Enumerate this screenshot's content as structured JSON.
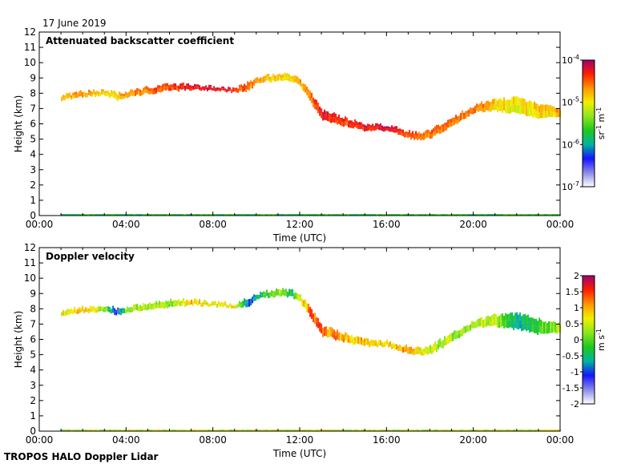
{
  "page": {
    "date": "17 June 2019",
    "footer": "TROPOS HALO Doppler Lidar"
  },
  "colors": {
    "background": "#ffffff",
    "axis": "#000000",
    "rainbow": [
      "#ffffff",
      "#8a8ae6",
      "#1414ff",
      "#00b4a0",
      "#1ec81e",
      "#8ce61e",
      "#f0f000",
      "#ff9600",
      "#ff1e00",
      "#a0006e"
    ]
  },
  "chart_data": [
    {
      "type": "heatmap",
      "title": "Attenuated backscatter coefficient",
      "xlabel": "Time (UTC)",
      "ylabel": "Height (km)",
      "xlim": [
        "00:00",
        "24:00"
      ],
      "x_ticks": [
        "00:00",
        "04:00",
        "08:00",
        "12:00",
        "16:00",
        "20:00",
        "00:00"
      ],
      "ylim": [
        0,
        12
      ],
      "y_ticks": [
        0,
        1,
        2,
        3,
        4,
        5,
        6,
        7,
        8,
        9,
        10,
        11,
        12
      ],
      "colorbar": {
        "label": "sr-1 m-1",
        "label_parts": [
          "sr",
          "-1",
          " m",
          "-1"
        ],
        "scale": "log",
        "range": [
          1e-07,
          0.0001
        ],
        "ticks": [
          {
            "value": 1e-07,
            "base": "10",
            "exp": "-7"
          },
          {
            "value": 1e-06,
            "base": "10",
            "exp": "-6"
          },
          {
            "value": 1e-05,
            "base": "10",
            "exp": "-5"
          },
          {
            "value": 0.0001,
            "base": "10",
            "exp": "-4"
          }
        ]
      },
      "cloud_layer": {
        "time_h": [
          1.0,
          2.0,
          3.0,
          3.6,
          4.0,
          5.0,
          6.0,
          7.0,
          8.0,
          9.0,
          9.6,
          10.0,
          11.0,
          11.6,
          12.0,
          12.5,
          13.0,
          14.0,
          15.0,
          16.0,
          17.0,
          17.5,
          18.0,
          19.0,
          20.0,
          21.0,
          22.0,
          23.0,
          24.0
        ],
        "top_km": [
          7.9,
          8.1,
          8.2,
          8.0,
          8.1,
          8.4,
          8.6,
          8.6,
          8.4,
          8.3,
          8.7,
          9.0,
          9.3,
          9.2,
          8.9,
          8.0,
          6.9,
          6.4,
          6.0,
          5.9,
          5.5,
          5.4,
          5.6,
          6.4,
          7.2,
          7.6,
          7.7,
          7.3,
          7.0
        ],
        "base_km": [
          7.6,
          7.8,
          7.9,
          7.6,
          7.8,
          8.0,
          8.2,
          8.3,
          8.2,
          8.1,
          8.2,
          8.7,
          8.9,
          8.8,
          8.5,
          7.4,
          6.3,
          5.9,
          5.6,
          5.6,
          5.1,
          5.0,
          5.1,
          5.9,
          6.8,
          6.9,
          6.7,
          6.4,
          6.5
        ],
        "value": [
          2e-05,
          2e-05,
          1.5e-05,
          1.5e-05,
          2e-05,
          3e-05,
          4e-05,
          6e-05,
          7e-05,
          5e-05,
          3e-05,
          2e-05,
          1.5e-05,
          1.5e-05,
          2e-05,
          3e-05,
          5e-05,
          5e-05,
          6e-05,
          8e-05,
          4e-05,
          3e-05,
          3e-05,
          3e-05,
          3e-05,
          1.5e-05,
          1.2e-05,
          1.5e-05,
          1.8e-05
        ]
      },
      "near_surface": {
        "height_km": 0.05,
        "t_start_h": 1.0,
        "t_end_h": 24.0,
        "value": 2e-06
      }
    },
    {
      "type": "heatmap",
      "title": "Doppler velocity",
      "xlabel": "Time (UTC)",
      "ylabel": "Height (km)",
      "xlim": [
        "00:00",
        "24:00"
      ],
      "x_ticks": [
        "00:00",
        "04:00",
        "08:00",
        "12:00",
        "16:00",
        "20:00",
        "00:00"
      ],
      "ylim": [
        0,
        12
      ],
      "y_ticks": [
        0,
        1,
        2,
        3,
        4,
        5,
        6,
        7,
        8,
        9,
        10,
        11,
        12
      ],
      "colorbar": {
        "label": "m s-1",
        "label_parts": [
          "m s",
          "-1"
        ],
        "scale": "linear",
        "range": [
          -2,
          2
        ],
        "ticks": [
          {
            "value": -2,
            "text": "-2"
          },
          {
            "value": -1.5,
            "text": "-1.5"
          },
          {
            "value": -1,
            "text": "-1"
          },
          {
            "value": -0.5,
            "text": "-0.5"
          },
          {
            "value": 0,
            "text": "0"
          },
          {
            "value": 0.5,
            "text": "0.5"
          },
          {
            "value": 1,
            "text": "1"
          },
          {
            "value": 1.5,
            "text": "1.5"
          },
          {
            "value": 2,
            "text": "2"
          }
        ]
      },
      "cloud_layer": {
        "time_h": [
          1.0,
          2.0,
          3.0,
          3.6,
          4.0,
          5.0,
          6.0,
          7.0,
          8.0,
          9.0,
          9.6,
          10.0,
          11.0,
          11.6,
          12.0,
          12.5,
          13.0,
          14.0,
          15.0,
          16.0,
          17.0,
          17.5,
          18.0,
          19.0,
          20.0,
          21.0,
          22.0,
          23.0,
          24.0
        ],
        "top_km": [
          7.9,
          8.1,
          8.2,
          8.0,
          8.1,
          8.4,
          8.6,
          8.6,
          8.4,
          8.3,
          8.7,
          9.0,
          9.3,
          9.2,
          8.9,
          8.0,
          6.9,
          6.4,
          6.0,
          5.9,
          5.5,
          5.4,
          5.6,
          6.4,
          7.2,
          7.6,
          7.7,
          7.3,
          7.0
        ],
        "base_km": [
          7.6,
          7.8,
          7.9,
          7.6,
          7.8,
          8.0,
          8.2,
          8.3,
          8.2,
          8.1,
          8.2,
          8.7,
          8.9,
          8.8,
          8.5,
          7.4,
          6.3,
          5.9,
          5.6,
          5.6,
          5.1,
          5.0,
          5.1,
          5.9,
          6.8,
          6.9,
          6.7,
          6.4,
          6.5
        ],
        "value": [
          0.6,
          1.0,
          0.2,
          -1.2,
          0.3,
          0.4,
          0.3,
          0.8,
          0.6,
          0.7,
          -1.0,
          -0.6,
          0.3,
          -0.5,
          0.6,
          1.3,
          1.3,
          1.0,
          0.9,
          0.7,
          1.2,
          0.6,
          0.5,
          0.3,
          0.3,
          0.4,
          -0.6,
          -0.2,
          0.3
        ]
      },
      "near_surface": {
        "height_km": 0.05,
        "t_start_h": 1.0,
        "t_end_h": 24.0,
        "value": 0.5
      }
    }
  ]
}
